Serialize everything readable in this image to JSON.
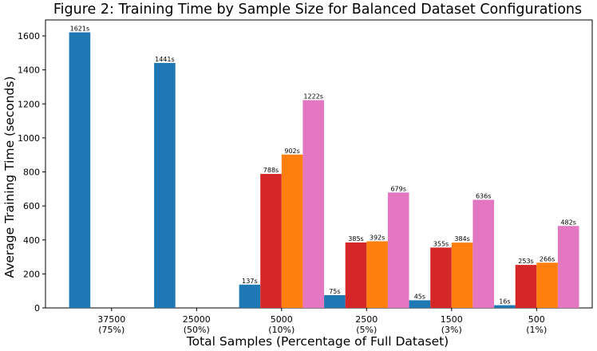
{
  "chart_data": {
    "type": "bar",
    "title": "Figure 2: Training Time by Sample Size for Balanced Dataset Configurations",
    "xlabel": "Total Samples (Percentage of Full Dataset)",
    "ylabel": "Average Training Time (seconds)",
    "ylim": [
      0,
      1700
    ],
    "yticks": [
      "0",
      "200",
      "400",
      "600",
      "800",
      "1000",
      "1200",
      "1400",
      "1600"
    ],
    "grid": false,
    "legend": "none",
    "categories": [
      {
        "samples": "37500",
        "pct": "(75%)"
      },
      {
        "samples": "25000",
        "pct": "(50%)"
      },
      {
        "samples": "5000",
        "pct": "(10%)"
      },
      {
        "samples": "2500",
        "pct": "(5%)"
      },
      {
        "samples": "1500",
        "pct": "(3%)"
      },
      {
        "samples": "500",
        "pct": "(1%)"
      }
    ],
    "series": [
      {
        "color": "#1f77b4",
        "values": [
          1621,
          1441,
          137,
          75,
          45,
          16
        ],
        "labels": [
          "1621s",
          "1441s",
          "137s",
          "75s",
          "45s",
          "16s"
        ]
      },
      {
        "color": "#d62728",
        "values": [
          null,
          null,
          788,
          385,
          355,
          253
        ],
        "labels": [
          "",
          "",
          "788s",
          "385s",
          "355s",
          "253s"
        ]
      },
      {
        "color": "#ff7f0e",
        "values": [
          null,
          null,
          902,
          392,
          384,
          266
        ],
        "labels": [
          "",
          "",
          "902s",
          "392s",
          "384s",
          "266s"
        ]
      },
      {
        "color": "#e377c2",
        "values": [
          null,
          null,
          1222,
          679,
          636,
          482
        ],
        "labels": [
          "",
          "",
          "1222s",
          "679s",
          "636s",
          "482s"
        ]
      }
    ]
  }
}
